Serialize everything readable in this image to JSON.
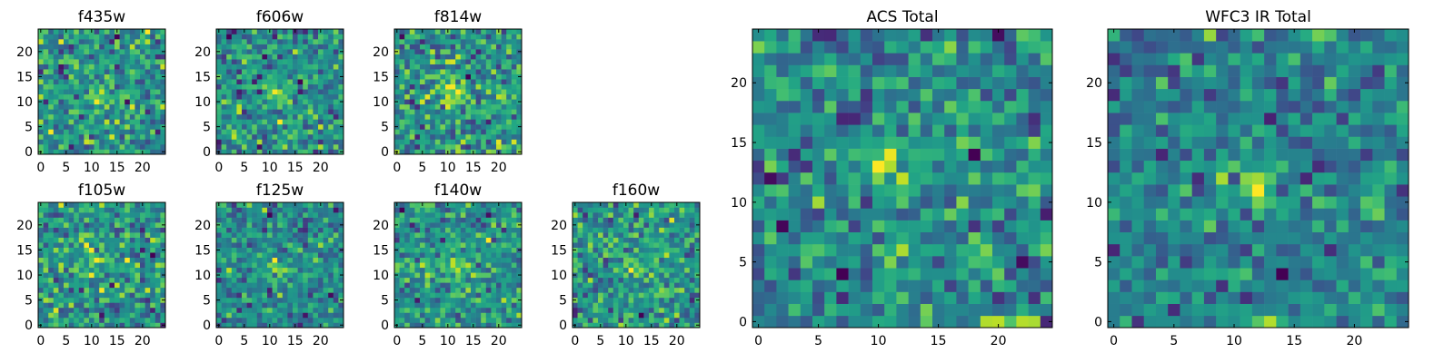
{
  "chart_data": [
    {
      "type": "heatmap",
      "title": "f435w",
      "grid": [
        25,
        25
      ],
      "xticks": [
        0,
        5,
        10,
        15,
        20
      ],
      "yticks": [
        0,
        5,
        10,
        15,
        20
      ],
      "xlim": [
        -0.5,
        24.5
      ],
      "ylim": [
        -0.5,
        24.5
      ],
      "colormap": "viridis",
      "seed": 11
    },
    {
      "type": "heatmap",
      "title": "f606w",
      "grid": [
        25,
        25
      ],
      "xticks": [
        0,
        5,
        10,
        15,
        20
      ],
      "yticks": [
        0,
        5,
        10,
        15,
        20
      ],
      "xlim": [
        -0.5,
        24.5
      ],
      "ylim": [
        -0.5,
        24.5
      ],
      "colormap": "viridis",
      "seed": 23
    },
    {
      "type": "heatmap",
      "title": "f814w",
      "grid": [
        25,
        25
      ],
      "xticks": [
        0,
        5,
        10,
        15,
        20
      ],
      "yticks": [
        0,
        5,
        10,
        15,
        20
      ],
      "xlim": [
        -0.5,
        24.5
      ],
      "ylim": [
        -0.5,
        24.5
      ],
      "colormap": "viridis",
      "seed": 37
    },
    {
      "type": "heatmap",
      "title": "f105w",
      "grid": [
        25,
        25
      ],
      "xticks": [
        0,
        5,
        10,
        15,
        20
      ],
      "yticks": [
        0,
        5,
        10,
        15,
        20
      ],
      "xlim": [
        -0.5,
        24.5
      ],
      "ylim": [
        -0.5,
        24.5
      ],
      "colormap": "viridis",
      "seed": 41
    },
    {
      "type": "heatmap",
      "title": "f125w",
      "grid": [
        25,
        25
      ],
      "xticks": [
        0,
        5,
        10,
        15,
        20
      ],
      "yticks": [
        0,
        5,
        10,
        15,
        20
      ],
      "xlim": [
        -0.5,
        24.5
      ],
      "ylim": [
        -0.5,
        24.5
      ],
      "colormap": "viridis",
      "seed": 53
    },
    {
      "type": "heatmap",
      "title": "f140w",
      "grid": [
        25,
        25
      ],
      "xticks": [
        0,
        5,
        10,
        15,
        20
      ],
      "yticks": [
        0,
        5,
        10,
        15,
        20
      ],
      "xlim": [
        -0.5,
        24.5
      ],
      "ylim": [
        -0.5,
        24.5
      ],
      "colormap": "viridis",
      "seed": 67
    },
    {
      "type": "heatmap",
      "title": "f160w",
      "grid": [
        25,
        25
      ],
      "xticks": [
        0,
        5,
        10,
        15,
        20
      ],
      "yticks": [
        0,
        5,
        10,
        15,
        20
      ],
      "xlim": [
        -0.5,
        24.5
      ],
      "ylim": [
        -0.5,
        24.5
      ],
      "colormap": "viridis",
      "seed": 79
    },
    {
      "type": "heatmap",
      "title": "ACS Total",
      "grid": [
        25,
        25
      ],
      "xticks": [
        0,
        5,
        10,
        15,
        20
      ],
      "yticks": [
        0,
        5,
        10,
        15,
        20
      ],
      "xlim": [
        -0.5,
        24.5
      ],
      "ylim": [
        -0.5,
        24.5
      ],
      "colormap": "viridis",
      "seed": 83
    },
    {
      "type": "heatmap",
      "title": "WFC3 IR Total",
      "grid": [
        25,
        25
      ],
      "xticks": [
        0,
        5,
        10,
        15,
        20
      ],
      "yticks": [
        0,
        5,
        10,
        15,
        20
      ],
      "xlim": [
        -0.5,
        24.5
      ],
      "ylim": [
        -0.5,
        24.5
      ],
      "colormap": "viridis",
      "seed": 97
    }
  ]
}
